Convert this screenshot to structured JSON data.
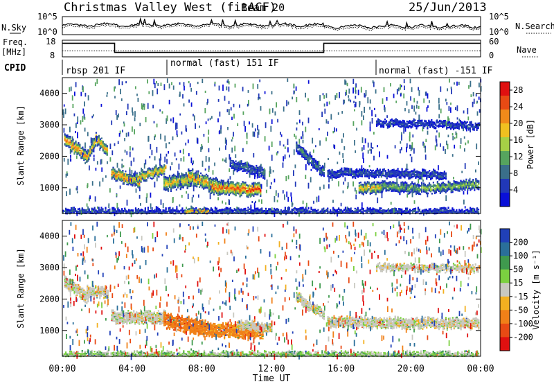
{
  "header": {
    "title": "Christmas Valley West (fitACF)",
    "beam": "Beam 20",
    "date": "25/Jun/2013"
  },
  "noise_panel": {
    "left_label": "N.Sky",
    "right_label": "N.Search",
    "left_ticks": [
      "10^5",
      "10^0"
    ],
    "right_ticks": [
      "10^5",
      "10^0"
    ]
  },
  "freq_panel": {
    "left_label_1": "Freq.",
    "left_label_2": "[MHz]",
    "right_label": "Nave",
    "left_ticks": [
      "18",
      "8"
    ],
    "right_ticks": [
      "60",
      "0"
    ],
    "freq_segments": [
      {
        "start": 0,
        "end": 3,
        "value": 16.8
      },
      {
        "start": 3,
        "end": 15,
        "value": 10.2
      },
      {
        "start": 15,
        "end": 24,
        "value": 16.8
      }
    ],
    "nave_level": 20
  },
  "cpid_panel": {
    "label": "CPID",
    "segments": [
      {
        "start": 0,
        "end": 6,
        "text": "rbsp 201 IF"
      },
      {
        "start": 6,
        "end": 18,
        "text": "normal (fast) 151 IF"
      },
      {
        "start": 18,
        "end": 24,
        "text": "normal (fast) -151 IF"
      }
    ]
  },
  "power_colorbar": {
    "label": "Power [dB]",
    "ticks": [
      "28",
      "24",
      "20",
      "16",
      "12",
      "8",
      "4"
    ],
    "colors": [
      "#0a10d8",
      "#2138b8",
      "#3a6f8a",
      "#56a45e",
      "#a6d046",
      "#f0c020",
      "#f08a1a",
      "#e84a14",
      "#e01010"
    ]
  },
  "velocity_colorbar": {
    "label": "Velocity [m s⁻¹]",
    "ticks": [
      "200",
      "100",
      "50",
      "15",
      "-15",
      "-50",
      "-100",
      "-200"
    ],
    "colors": [
      "#2040b8",
      "#2a6f9a",
      "#3f9a4e",
      "#7bd040",
      "#c8c8c0",
      "#f2b020",
      "#f08018",
      "#e84a14",
      "#e01010"
    ]
  },
  "axes": {
    "y_label": "Slant Range [km]",
    "y_ticks": [
      "4000",
      "3000",
      "2000",
      "1000"
    ],
    "x_label": "Time UT",
    "x_ticks": [
      "00:00",
      "04:00",
      "08:00",
      "12:00",
      "16:00",
      "20:00",
      "00:00"
    ]
  },
  "chart_data": [
    {
      "type": "heatmap",
      "name": "power",
      "xlabel": "Time UT",
      "ylabel": "Slant Range [km]",
      "xlim": [
        0,
        24
      ],
      "ylim": [
        180,
        4500
      ],
      "colorbar_label": "Power [dB]",
      "zlim": [
        0,
        30
      ],
      "features": [
        {
          "t0": 0.1,
          "t1": 1.5,
          "r0": 2550,
          "r1": 2000,
          "width": 340,
          "z": 22
        },
        {
          "t0": 1.4,
          "t1": 1.9,
          "r0": 2000,
          "r1": 2500,
          "width": 300,
          "z": 20
        },
        {
          "t0": 1.9,
          "t1": 2.6,
          "r0": 2600,
          "r1": 2200,
          "width": 300,
          "z": 20
        },
        {
          "t0": 2.8,
          "t1": 4.4,
          "r0": 1500,
          "r1": 1200,
          "width": 320,
          "z": 22
        },
        {
          "t0": 4.0,
          "t1": 5.9,
          "r0": 1300,
          "r1": 1650,
          "width": 300,
          "z": 19
        },
        {
          "t0": 5.8,
          "t1": 7.4,
          "r0": 1150,
          "r1": 1300,
          "width": 420,
          "z": 18
        },
        {
          "t0": 7.2,
          "t1": 9.2,
          "r0": 1400,
          "r1": 1000,
          "width": 420,
          "z": 20
        },
        {
          "t0": 8.5,
          "t1": 11.4,
          "r0": 1050,
          "r1": 950,
          "width": 380,
          "z": 24
        },
        {
          "t0": 9.6,
          "t1": 11.6,
          "r0": 1800,
          "r1": 1500,
          "width": 280,
          "z": 8
        },
        {
          "t0": 13.4,
          "t1": 15.0,
          "r0": 2300,
          "r1": 1500,
          "width": 300,
          "z": 9
        },
        {
          "t0": 15.2,
          "t1": 22.0,
          "r0": 1500,
          "r1": 1450,
          "width": 220,
          "z": 7
        },
        {
          "t0": 17.0,
          "t1": 18.4,
          "r0": 1000,
          "r1": 1050,
          "width": 320,
          "z": 18
        },
        {
          "t0": 18.3,
          "t1": 20.6,
          "r0": 1050,
          "r1": 1000,
          "width": 300,
          "z": 12
        },
        {
          "t0": 20.7,
          "t1": 23.9,
          "r0": 1000,
          "r1": 1150,
          "width": 280,
          "z": 14
        },
        {
          "t0": 18.0,
          "t1": 23.9,
          "r0": 3100,
          "r1": 3000,
          "width": 200,
          "z": 6
        },
        {
          "t0": 0.0,
          "t1": 23.9,
          "r0": 260,
          "r1": 260,
          "width": 160,
          "z": 7
        },
        {
          "t0": 7.0,
          "t1": 8.4,
          "r0": 280,
          "r1": 280,
          "width": 140,
          "z": 22
        }
      ]
    },
    {
      "type": "heatmap",
      "name": "velocity",
      "xlabel": "Time UT",
      "ylabel": "Slant Range [km]",
      "xlim": [
        0,
        24
      ],
      "ylim": [
        180,
        4500
      ],
      "colorbar_label": "Velocity [m s⁻¹]",
      "zlim": [
        -200,
        200
      ],
      "features": [
        {
          "t0": 0.1,
          "t1": 1.5,
          "r0": 2600,
          "r1": 2050,
          "width": 340,
          "z": 0
        },
        {
          "t0": 1.4,
          "t1": 2.6,
          "r0": 2300,
          "r1": 2200,
          "width": 320,
          "z": 0
        },
        {
          "t0": 2.8,
          "t1": 5.9,
          "r0": 1450,
          "r1": 1450,
          "width": 340,
          "z": 0
        },
        {
          "t0": 5.8,
          "t1": 8.2,
          "r0": 1350,
          "r1": 1100,
          "width": 450,
          "z": -60
        },
        {
          "t0": 8.0,
          "t1": 11.5,
          "r0": 1050,
          "r1": 1000,
          "width": 400,
          "z": -45
        },
        {
          "t0": 10.0,
          "t1": 12.0,
          "r0": 1250,
          "r1": 1100,
          "width": 260,
          "z": 0
        },
        {
          "t0": 13.4,
          "t1": 15.0,
          "r0": 2100,
          "r1": 1500,
          "width": 280,
          "z": 0
        },
        {
          "t0": 15.2,
          "t1": 23.9,
          "r0": 1300,
          "r1": 1250,
          "width": 300,
          "z": 0
        },
        {
          "t0": 18.0,
          "t1": 23.9,
          "r0": 3050,
          "r1": 3000,
          "width": 200,
          "z": 0
        },
        {
          "t0": 0.0,
          "t1": 23.9,
          "r0": 250,
          "r1": 250,
          "width": 160,
          "z": 20
        }
      ]
    }
  ]
}
